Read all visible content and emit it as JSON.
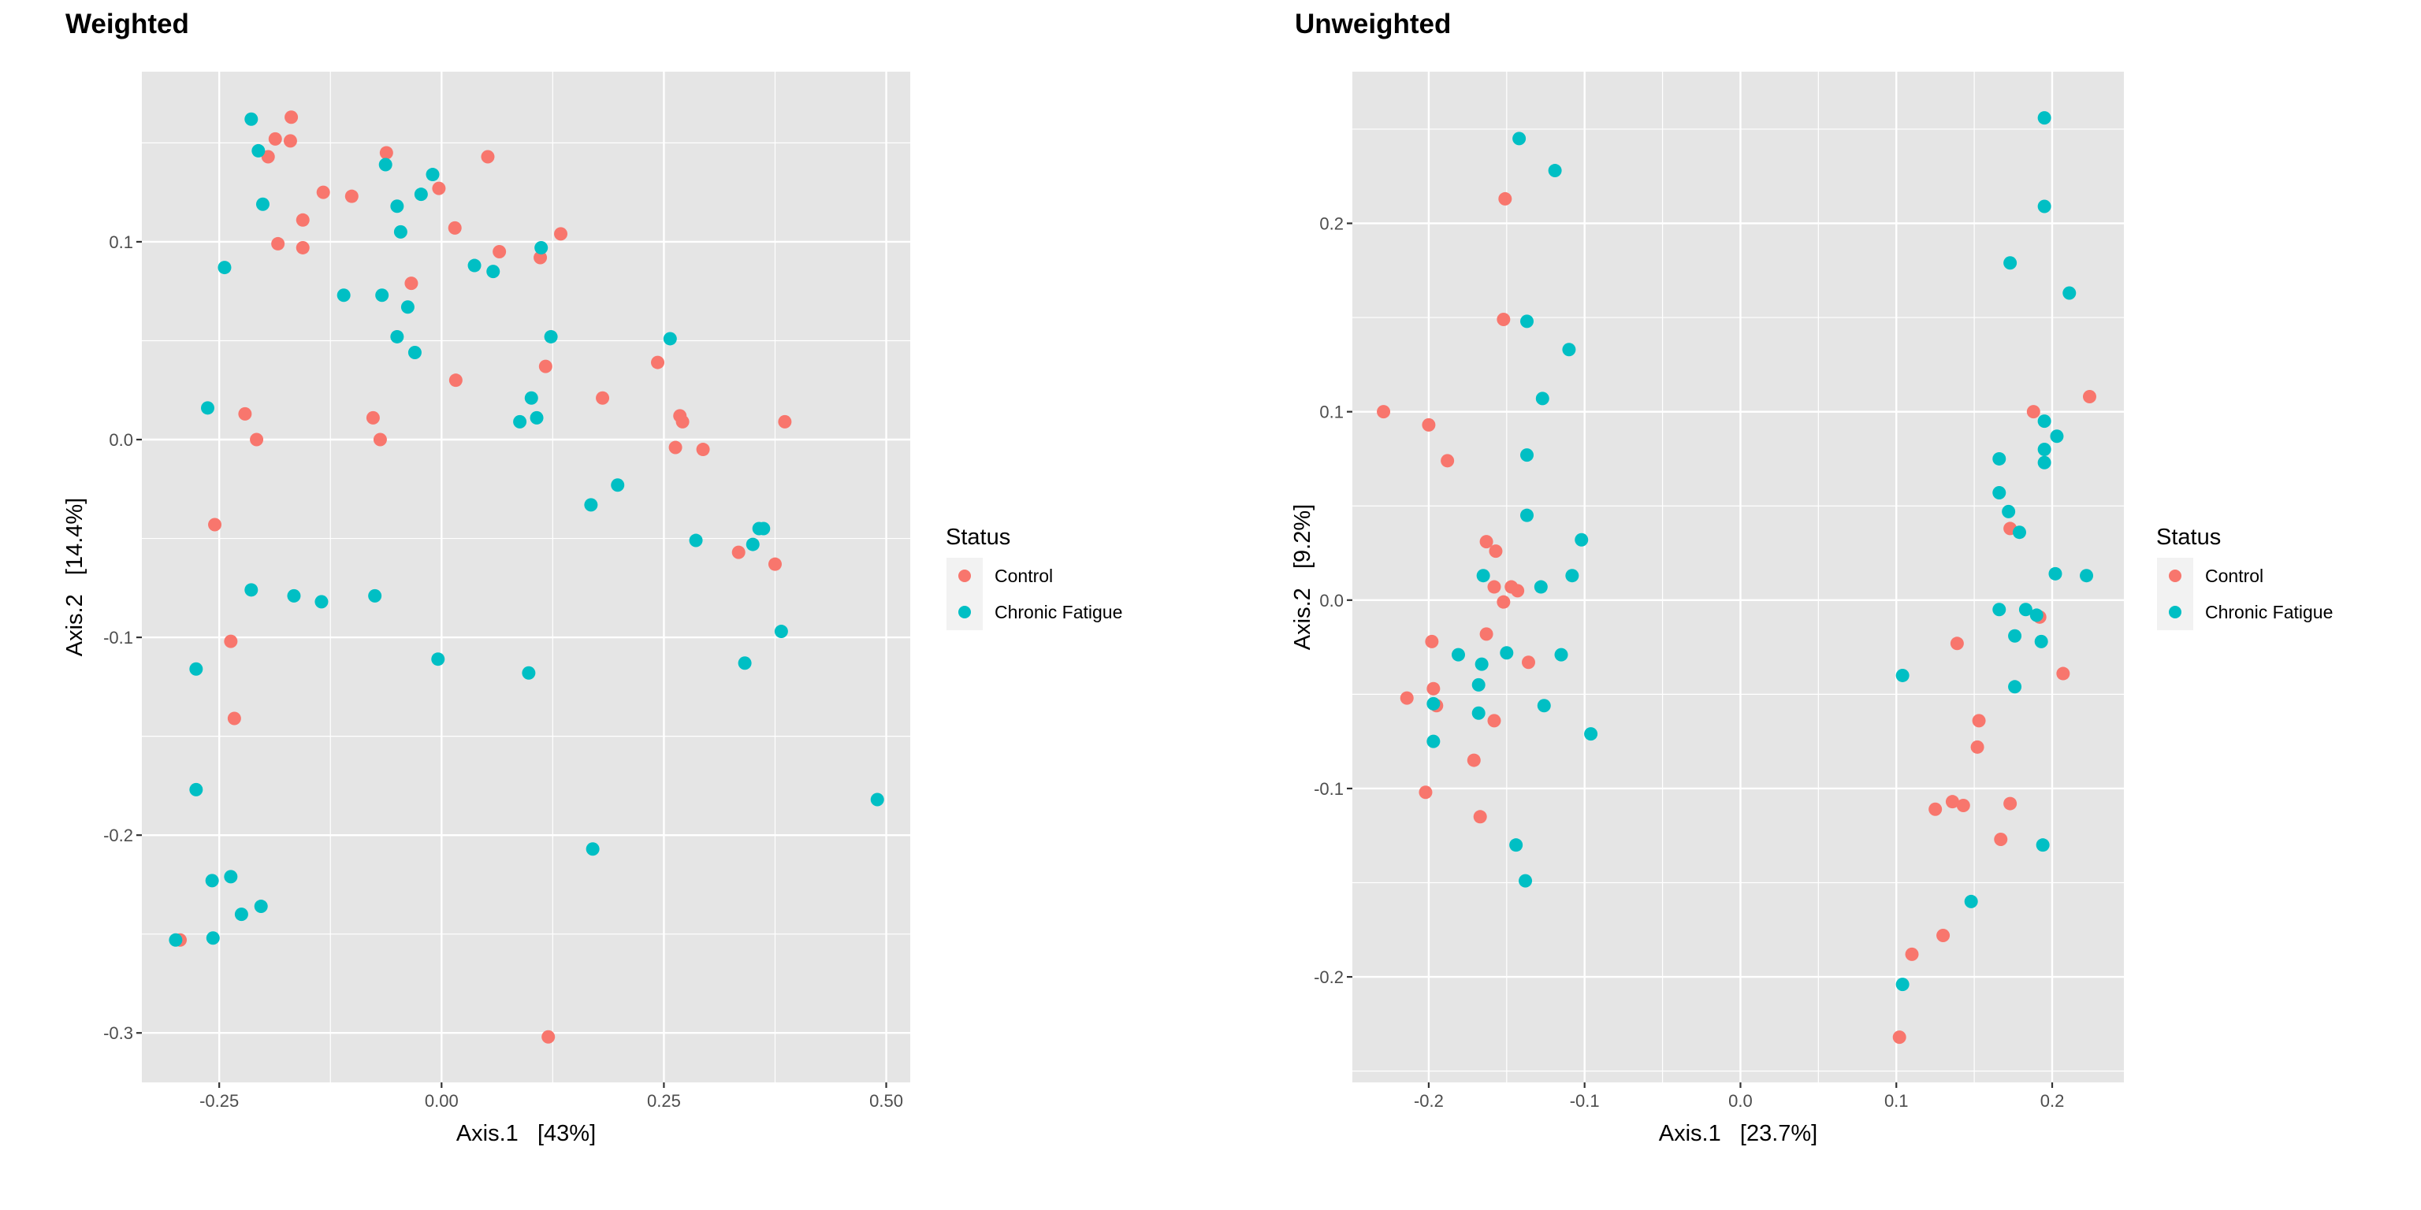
{
  "chart_data": [
    {
      "type": "scatter",
      "title": "Weighted",
      "xlabel": "Axis.1   [43%]",
      "ylabel": "Axis.2   [14.4%]",
      "xlim": [
        -0.337,
        0.527
      ],
      "ylim": [
        -0.325,
        0.186
      ],
      "x_ticks": [
        -0.25,
        0.0,
        0.25,
        0.5
      ],
      "x_tick_labels": [
        "-0.25",
        "0.00",
        "0.25",
        "0.50"
      ],
      "y_ticks": [
        -0.3,
        -0.2,
        -0.1,
        0.0,
        0.1
      ],
      "y_tick_labels": [
        "-0.3",
        "-0.2",
        "-0.1",
        "0.0",
        "0.1"
      ],
      "grid": true,
      "legend": {
        "title": "Status",
        "placement": "right",
        "entries": [
          "Control",
          "Chronic Fatigue"
        ]
      },
      "series": [
        {
          "name": "Control",
          "color": "#F8766D",
          "points": [
            [
              -0.169,
              0.163
            ],
            [
              -0.187,
              0.152
            ],
            [
              -0.17,
              0.151
            ],
            [
              -0.195,
              0.143
            ],
            [
              -0.062,
              0.145
            ],
            [
              0.052,
              0.143
            ],
            [
              -0.003,
              0.127
            ],
            [
              -0.133,
              0.125
            ],
            [
              -0.101,
              0.123
            ],
            [
              -0.156,
              0.111
            ],
            [
              -0.184,
              0.099
            ],
            [
              -0.156,
              0.097
            ],
            [
              0.015,
              0.107
            ],
            [
              0.134,
              0.104
            ],
            [
              0.065,
              0.095
            ],
            [
              0.111,
              0.092
            ],
            [
              -0.034,
              0.079
            ],
            [
              0.117,
              0.037
            ],
            [
              0.016,
              0.03
            ],
            [
              0.243,
              0.039
            ],
            [
              0.181,
              0.021
            ],
            [
              0.268,
              0.012
            ],
            [
              0.271,
              0.009
            ],
            [
              0.386,
              0.009
            ],
            [
              -0.221,
              0.013
            ],
            [
              -0.208,
              0.0
            ],
            [
              -0.077,
              0.011
            ],
            [
              -0.069,
              0.0
            ],
            [
              0.263,
              -0.004
            ],
            [
              0.294,
              -0.005
            ],
            [
              -0.255,
              -0.043
            ],
            [
              0.334,
              -0.057
            ],
            [
              0.375,
              -0.063
            ],
            [
              -0.237,
              -0.102
            ],
            [
              -0.233,
              -0.141
            ],
            [
              -0.294,
              -0.253
            ],
            [
              0.12,
              -0.302
            ]
          ]
        },
        {
          "name": "Chronic Fatigue",
          "color": "#00BFC4",
          "points": [
            [
              -0.214,
              0.162
            ],
            [
              -0.206,
              0.146
            ],
            [
              -0.201,
              0.119
            ],
            [
              -0.244,
              0.087
            ],
            [
              -0.063,
              0.139
            ],
            [
              -0.01,
              0.134
            ],
            [
              -0.023,
              0.124
            ],
            [
              -0.05,
              0.118
            ],
            [
              -0.046,
              0.105
            ],
            [
              -0.11,
              0.073
            ],
            [
              -0.067,
              0.073
            ],
            [
              -0.038,
              0.067
            ],
            [
              -0.05,
              0.052
            ],
            [
              -0.03,
              0.044
            ],
            [
              0.037,
              0.088
            ],
            [
              0.058,
              0.085
            ],
            [
              0.112,
              0.097
            ],
            [
              0.123,
              0.052
            ],
            [
              0.257,
              0.051
            ],
            [
              0.101,
              0.021
            ],
            [
              0.107,
              0.011
            ],
            [
              0.088,
              0.009
            ],
            [
              -0.263,
              0.016
            ],
            [
              0.168,
              -0.033
            ],
            [
              0.198,
              -0.023
            ],
            [
              0.286,
              -0.051
            ],
            [
              0.35,
              -0.053
            ],
            [
              0.357,
              -0.045
            ],
            [
              0.362,
              -0.045
            ],
            [
              -0.214,
              -0.076
            ],
            [
              -0.166,
              -0.079
            ],
            [
              -0.135,
              -0.082
            ],
            [
              -0.075,
              -0.079
            ],
            [
              -0.004,
              -0.111
            ],
            [
              0.098,
              -0.118
            ],
            [
              0.341,
              -0.113
            ],
            [
              0.382,
              -0.097
            ],
            [
              -0.276,
              -0.116
            ],
            [
              -0.276,
              -0.177
            ],
            [
              0.49,
              -0.182
            ],
            [
              0.17,
              -0.207
            ],
            [
              -0.258,
              -0.223
            ],
            [
              -0.237,
              -0.221
            ],
            [
              -0.225,
              -0.24
            ],
            [
              -0.203,
              -0.236
            ],
            [
              -0.299,
              -0.253
            ],
            [
              -0.257,
              -0.252
            ]
          ]
        }
      ]
    },
    {
      "type": "scatter",
      "title": "Unweighted",
      "xlabel": "Axis.1   [23.7%]",
      "ylabel": "Axis.2   [9.2%]",
      "xlim": [
        -0.249,
        0.246
      ],
      "ylim": [
        -0.256,
        0.2805
      ],
      "x_ticks": [
        -0.2,
        -0.1,
        0.0,
        0.1,
        0.2
      ],
      "x_tick_labels": [
        "-0.2",
        "-0.1",
        "0.0",
        "0.1",
        "0.2"
      ],
      "y_ticks": [
        -0.2,
        -0.1,
        0.0,
        0.1,
        0.2
      ],
      "y_tick_labels": [
        "-0.2",
        "-0.1",
        "0.0",
        "0.1",
        "0.2"
      ],
      "grid": true,
      "legend": {
        "title": "Status",
        "placement": "right",
        "entries": [
          "Control",
          "Chronic Fatigue"
        ]
      },
      "series": [
        {
          "name": "Control",
          "color": "#F8766D",
          "points": [
            [
              -0.151,
              0.213
            ],
            [
              -0.152,
              0.149
            ],
            [
              -0.229,
              0.1
            ],
            [
              -0.2,
              0.093
            ],
            [
              -0.188,
              0.074
            ],
            [
              -0.163,
              0.031
            ],
            [
              -0.157,
              0.026
            ],
            [
              -0.158,
              0.007
            ],
            [
              -0.147,
              0.007
            ],
            [
              -0.143,
              0.005
            ],
            [
              -0.152,
              -0.001
            ],
            [
              -0.163,
              -0.018
            ],
            [
              -0.198,
              -0.022
            ],
            [
              -0.136,
              -0.033
            ],
            [
              -0.197,
              -0.047
            ],
            [
              -0.214,
              -0.052
            ],
            [
              -0.195,
              -0.056
            ],
            [
              -0.158,
              -0.064
            ],
            [
              -0.171,
              -0.085
            ],
            [
              -0.202,
              -0.102
            ],
            [
              -0.167,
              -0.115
            ],
            [
              0.188,
              0.1
            ],
            [
              0.224,
              0.108
            ],
            [
              0.173,
              0.038
            ],
            [
              0.192,
              -0.009
            ],
            [
              0.139,
              -0.023
            ],
            [
              0.207,
              -0.039
            ],
            [
              0.153,
              -0.064
            ],
            [
              0.152,
              -0.078
            ],
            [
              0.136,
              -0.107
            ],
            [
              0.143,
              -0.109
            ],
            [
              0.125,
              -0.111
            ],
            [
              0.173,
              -0.108
            ],
            [
              0.167,
              -0.127
            ],
            [
              0.13,
              -0.178
            ],
            [
              0.11,
              -0.188
            ],
            [
              0.102,
              -0.232
            ]
          ]
        },
        {
          "name": "Chronic Fatigue",
          "color": "#00BFC4",
          "points": [
            [
              -0.142,
              0.245
            ],
            [
              -0.119,
              0.228
            ],
            [
              -0.137,
              0.148
            ],
            [
              -0.11,
              0.133
            ],
            [
              -0.127,
              0.107
            ],
            [
              -0.137,
              0.077
            ],
            [
              -0.137,
              0.045
            ],
            [
              -0.102,
              0.032
            ],
            [
              -0.165,
              0.013
            ],
            [
              -0.128,
              0.007
            ],
            [
              -0.108,
              0.013
            ],
            [
              -0.181,
              -0.029
            ],
            [
              -0.15,
              -0.028
            ],
            [
              -0.166,
              -0.034
            ],
            [
              -0.115,
              -0.029
            ],
            [
              -0.168,
              -0.045
            ],
            [
              -0.197,
              -0.055
            ],
            [
              -0.168,
              -0.06
            ],
            [
              -0.126,
              -0.056
            ],
            [
              -0.096,
              -0.071
            ],
            [
              -0.197,
              -0.075
            ],
            [
              -0.144,
              -0.13
            ],
            [
              -0.138,
              -0.149
            ],
            [
              0.195,
              0.256
            ],
            [
              0.195,
              0.209
            ],
            [
              0.173,
              0.179
            ],
            [
              0.211,
              0.163
            ],
            [
              0.195,
              0.095
            ],
            [
              0.203,
              0.087
            ],
            [
              0.195,
              0.08
            ],
            [
              0.166,
              0.075
            ],
            [
              0.195,
              0.073
            ],
            [
              0.166,
              0.057
            ],
            [
              0.172,
              0.047
            ],
            [
              0.179,
              0.036
            ],
            [
              0.202,
              0.014
            ],
            [
              0.222,
              0.013
            ],
            [
              0.166,
              -0.005
            ],
            [
              0.183,
              -0.005
            ],
            [
              0.19,
              -0.008
            ],
            [
              0.176,
              -0.019
            ],
            [
              0.193,
              -0.022
            ],
            [
              0.176,
              -0.046
            ],
            [
              0.104,
              -0.04
            ],
            [
              0.194,
              -0.13
            ],
            [
              0.148,
              -0.16
            ],
            [
              0.104,
              -0.204
            ]
          ]
        }
      ]
    }
  ],
  "colors": {
    "panel_background": "#E5E5E5",
    "grid": "#FFFFFF",
    "legend_key_background": "#F2F2F2",
    "tick_text": "#4D4D4D"
  }
}
